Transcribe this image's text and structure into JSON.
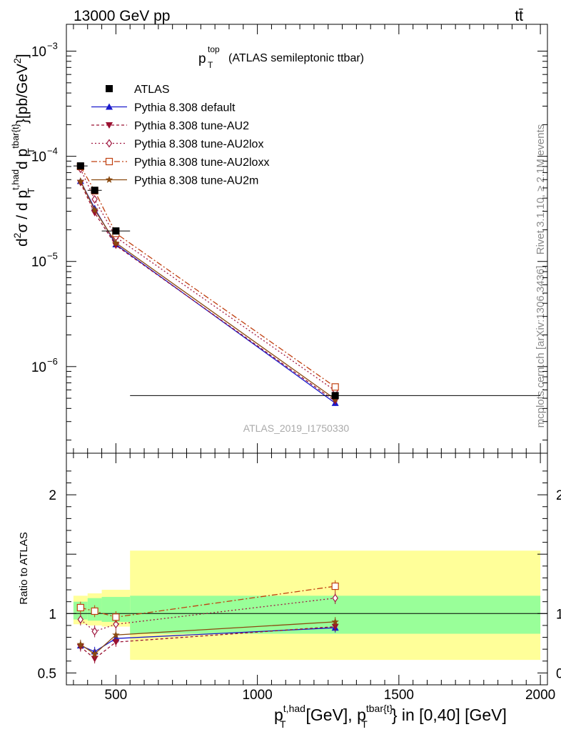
{
  "header": {
    "left": "13000 GeV pp",
    "right": "tt̄"
  },
  "side_labels": {
    "rivet": "Rivet 3.1.10, ≥ 2.1M events",
    "mcplots": "mcplots.cern.ch [arXiv:1306.3436]"
  },
  "watermark": "ATLAS_2019_I1750330",
  "title": {
    "main": "p",
    "sup": "top",
    "sub": "T",
    "rest": "(ATLAS semileptonic ttbar)"
  },
  "ylabel_main": {
    "d2": "d",
    "two": "2",
    "sigma": "σ / d p",
    "sup1": "t,had",
    "sub1": "T",
    "mid": "d p",
    "sup2": "tbar{t}",
    "sub2": "T",
    "unit": "}[pb/GeV",
    "unitexp": "2",
    "unitclose": "]"
  },
  "ylabel_ratio": "Ratio to ATLAS",
  "xlabel": {
    "p1": "p",
    "sup1": "t,had",
    "sub1": "T",
    "mid": "[GeV], p",
    "sup2": "tbar{t}",
    "sub2": "T",
    "rest": "} in [0,40] [GeV]"
  },
  "legend": [
    {
      "label": "ATLAS"
    },
    {
      "label": "Pythia 8.308 default"
    },
    {
      "label": "Pythia 8.308 tune-AU2"
    },
    {
      "label": "Pythia 8.308 tune-AU2lox"
    },
    {
      "label": "Pythia 8.308 tune-AU2loxx"
    },
    {
      "label": "Pythia 8.308 tune-AU2m"
    }
  ],
  "chart_data": {
    "type": "line",
    "x_ticks": [
      500,
      1000,
      1500,
      2000
    ],
    "x_range": [
      325,
      2025
    ],
    "y_scale": "log",
    "y_range": [
      1.5e-07,
      0.0018
    ],
    "y_ticks": [
      {
        "base": "10",
        "exp": "−3",
        "v": 0.001
      },
      {
        "base": "10",
        "exp": "−4",
        "v": 0.0001
      },
      {
        "base": "10",
        "exp": "−5",
        "v": 1e-05
      },
      {
        "base": "10",
        "exp": "−6",
        "v": 1e-06
      }
    ],
    "ratio_range": [
      0.4,
      2.35
    ],
    "ratio_ticks": [
      {
        "label": "0.5",
        "v": 0.5
      },
      {
        "label": "1",
        "v": 1.0
      },
      {
        "label": "2",
        "v": 2.0
      }
    ],
    "bins": [
      [
        350,
        400
      ],
      [
        400,
        450
      ],
      [
        450,
        550
      ],
      [
        550,
        2000
      ]
    ],
    "x": [
      375,
      425,
      500,
      1275
    ],
    "atlas": {
      "name": "ATLAS",
      "values": [
        8.1e-05,
        4.75e-05,
        1.95e-05,
        5.3e-07
      ],
      "band_inner": [
        [
          0.95,
          1.1
        ],
        [
          0.94,
          1.13
        ],
        [
          0.93,
          1.14
        ],
        [
          0.83,
          1.15
        ]
      ],
      "band_outer": [
        [
          0.91,
          1.15
        ],
        [
          0.9,
          1.17
        ],
        [
          0.89,
          1.2
        ],
        [
          0.61,
          1.53
        ]
      ]
    },
    "series": [
      {
        "name": "Pythia 8.308 default",
        "color": "#1a1acc",
        "dash": "",
        "marker": "triangle-up",
        "values": [
          5.8e-05,
          3.2e-05,
          1.45e-05,
          4.5e-07
        ],
        "ratio": [
          0.73,
          0.68,
          0.79,
          0.88
        ],
        "ratio_err": 0.04
      },
      {
        "name": "Pythia 8.308 tune-AU2",
        "color": "#9a1030",
        "dash": "4,3",
        "marker": "triangle-down",
        "values": [
          5.6e-05,
          2.9e-05,
          1.42e-05,
          4.7e-07
        ],
        "ratio": [
          0.72,
          0.62,
          0.76,
          0.89
        ],
        "ratio_err": 0.04
      },
      {
        "name": "Pythia 8.308 tune-AU2lox",
        "color": "#a01840",
        "dash": "2,3",
        "marker": "diamond-open",
        "values": [
          7.6e-05,
          3.9e-05,
          1.7e-05,
          5.9e-07
        ],
        "ratio": [
          0.95,
          0.85,
          0.91,
          1.13
        ],
        "ratio_err": 0.05
      },
      {
        "name": "Pythia 8.308 tune-AU2loxx",
        "color": "#c04010",
        "dash": "8,3,2,3",
        "marker": "square-open",
        "values": [
          8e-05,
          4.7e-05,
          1.85e-05,
          6.4e-07
        ],
        "ratio": [
          1.05,
          1.02,
          0.97,
          1.23
        ],
        "ratio_err": 0.05
      },
      {
        "name": "Pythia 8.308 tune-AU2m",
        "color": "#8a4a10",
        "dash": "",
        "marker": "star",
        "values": [
          5.8e-05,
          3.1e-05,
          1.5e-05,
          4.9e-07
        ],
        "ratio": [
          0.74,
          0.66,
          0.82,
          0.93
        ],
        "ratio_err": 0.04
      }
    ]
  }
}
